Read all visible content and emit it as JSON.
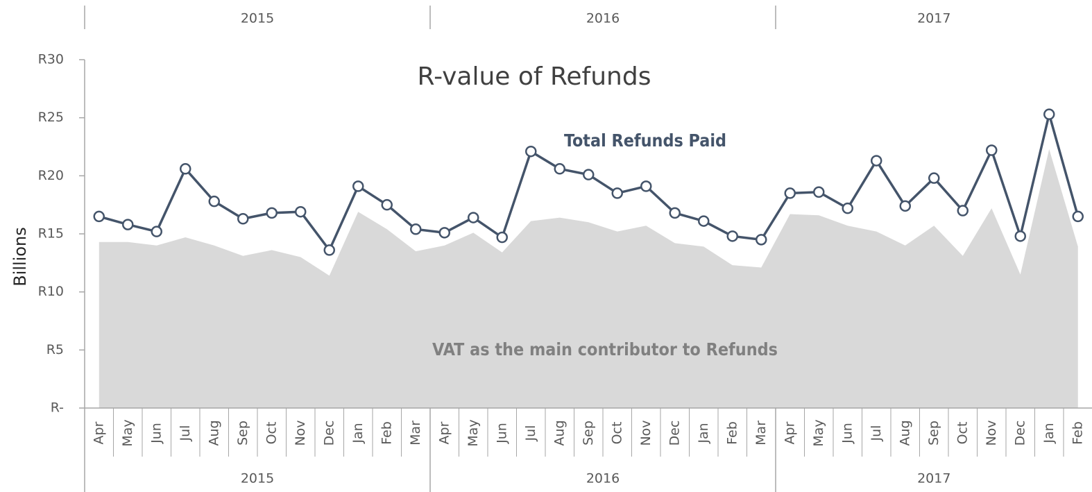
{
  "chart_data": {
    "type": "line",
    "title": "R-value of Refunds",
    "y_label": "Billions",
    "categories": [
      "Apr",
      "May",
      "Jun",
      "Jul",
      "Aug",
      "Sep",
      "Oct",
      "Nov",
      "Dec",
      "Jan",
      "Feb",
      "Mar",
      "Apr",
      "May",
      "Jun",
      "Jul",
      "Aug",
      "Sep",
      "Oct",
      "Nov",
      "Dec",
      "Jan",
      "Feb",
      "Mar",
      "Apr",
      "May",
      "Jun",
      "Jul",
      "Aug",
      "Sep",
      "Oct",
      "Nov",
      "Dec",
      "Jan",
      "Feb"
    ],
    "year_groups": [
      {
        "label": "2015",
        "months": 12
      },
      {
        "label": "2016",
        "months": 12
      },
      {
        "label": "2017",
        "months": 11
      }
    ],
    "series": [
      {
        "name": "VAT as the main contributor to Refunds",
        "kind": "area",
        "color": "#d9d9d9",
        "label_color": "#808080",
        "values": [
          14.3,
          14.3,
          14.0,
          14.7,
          14.0,
          13.1,
          13.6,
          13.0,
          11.4,
          16.9,
          15.4,
          13.5,
          14.0,
          15.1,
          13.4,
          16.1,
          16.4,
          16.0,
          15.2,
          15.7,
          14.2,
          13.9,
          12.3,
          12.1,
          16.7,
          16.6,
          15.7,
          15.2,
          14.0,
          15.7,
          13.1,
          17.2,
          11.5,
          22.3,
          13.9
        ]
      },
      {
        "name": "Total Refunds Paid",
        "kind": "line",
        "color": "#44546a",
        "label_color": "#44546a",
        "values": [
          16.5,
          15.8,
          15.2,
          20.6,
          17.8,
          16.3,
          16.8,
          16.9,
          13.6,
          19.1,
          17.5,
          15.4,
          15.1,
          16.4,
          14.7,
          22.1,
          20.6,
          20.1,
          18.5,
          19.1,
          16.8,
          16.1,
          14.8,
          14.5,
          18.5,
          18.6,
          17.2,
          21.3,
          17.4,
          19.8,
          17.0,
          22.2,
          14.8,
          25.3,
          16.5
        ]
      }
    ],
    "ylim": [
      0,
      30
    ],
    "yticks": [
      {
        "value": 0,
        "label": "R-"
      },
      {
        "value": 5,
        "label": "R5"
      },
      {
        "value": 10,
        "label": "R10"
      },
      {
        "value": 15,
        "label": "R15"
      },
      {
        "value": 20,
        "label": "R20"
      },
      {
        "value": 25,
        "label": "R25"
      },
      {
        "value": 30,
        "label": "R30"
      }
    ],
    "grid": false
  }
}
